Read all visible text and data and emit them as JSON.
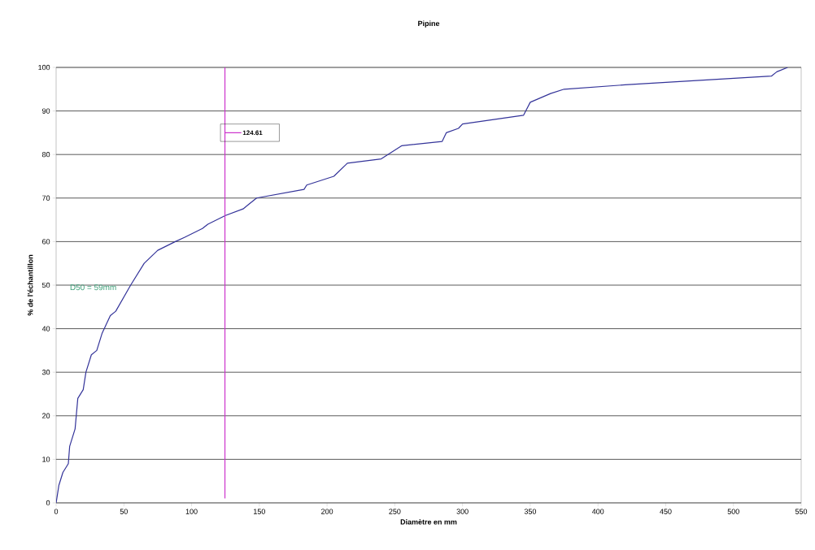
{
  "chart_data": {
    "type": "line",
    "title": "Pipine",
    "xlabel": "Diamètre en mm",
    "ylabel": "% de l'échantillon",
    "annotations": [
      "D50 = 59mm"
    ],
    "x": [
      0,
      2,
      5,
      9,
      10,
      14,
      16,
      20,
      22,
      26,
      30,
      34,
      40,
      44,
      55,
      65,
      75,
      88,
      95,
      108,
      112,
      125,
      138,
      142,
      148,
      183,
      185,
      205,
      215,
      240,
      255,
      285,
      288,
      297,
      300,
      345,
      350,
      365,
      375,
      420,
      528,
      532,
      540
    ],
    "series": [
      {
        "color": "#333399",
        "values": [
          0,
          4,
          7,
          9,
          13,
          17,
          24,
          26,
          30,
          34,
          35,
          39,
          43,
          44,
          50,
          55,
          58,
          60,
          61,
          63,
          64,
          66,
          67.5,
          68.5,
          70,
          72,
          73,
          75,
          78,
          79,
          82,
          83,
          85,
          86,
          87,
          89,
          92,
          94,
          95,
          96,
          98,
          99,
          100
        ]
      }
    ],
    "ref_lines": [
      {
        "axis": "x",
        "value": 124.61,
        "label": "124.61",
        "color": "#cc33cc"
      }
    ],
    "xlim": [
      0,
      550
    ],
    "xticks": [
      0,
      50,
      100,
      150,
      200,
      250,
      300,
      350,
      400,
      450,
      500,
      550
    ],
    "ylim": [
      0,
      100
    ],
    "yticks": [
      0,
      10,
      20,
      30,
      40,
      50,
      60,
      70,
      80,
      90,
      100
    ],
    "grid": "y",
    "legend": "top left",
    "marker": "none",
    "line_style": "solid"
  }
}
